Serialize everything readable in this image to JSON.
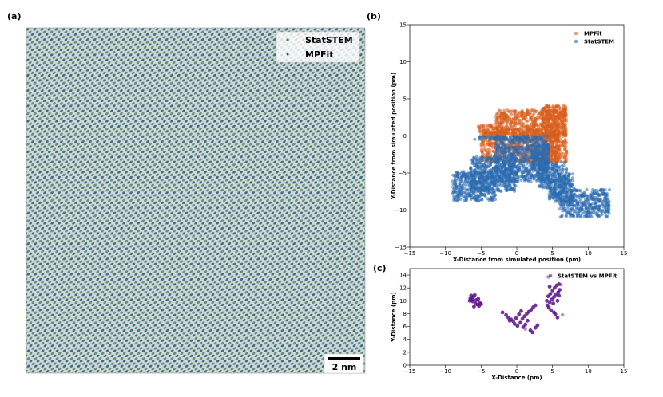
{
  "panels": {
    "a": "(a)",
    "b": "(b)",
    "c": "(c)"
  },
  "image_panel": {
    "legend": [
      "StatSTEM",
      "MPFit"
    ],
    "legend_colors": [
      "#2ca02c",
      "#1f3a8a"
    ],
    "scale_bar_label": "2 nm",
    "lattice_colors": [
      "#5a8a7a",
      "#3a6a8a",
      "#7aa08a"
    ]
  },
  "chart_data": [
    {
      "id": "b",
      "type": "scatter",
      "title": "",
      "xlabel": "X-Distance from simulated position (pm)",
      "ylabel": "Y-Distance from simulated position (pm)",
      "xlim": [
        -15,
        15
      ],
      "ylim": [
        -15,
        15
      ],
      "xticks": [
        -15,
        -10,
        -5,
        0,
        5,
        10,
        15
      ],
      "yticks": [
        -15,
        -10,
        -5,
        0,
        5,
        10,
        15
      ],
      "xtick_labels": [
        "−15",
        "−10",
        "−5",
        "0",
        "5",
        "10",
        "15"
      ],
      "ytick_labels": [
        "−15",
        "−10",
        "−5",
        "0",
        "5",
        "10",
        "15"
      ],
      "legend_position": "top-right",
      "series": [
        {
          "name": "MPFit",
          "color": "#d95f1c",
          "regions": [
            {
              "x": [
                -5,
                6
              ],
              "y": [
                -3.5,
                1
              ]
            },
            {
              "x": [
                -3,
                7
              ],
              "y": [
                0,
                3.5
              ]
            },
            {
              "x": [
                -5.5,
                -2
              ],
              "y": [
                0,
                1.5
              ]
            },
            {
              "x": [
                3.5,
                7
              ],
              "y": [
                -3.5,
                4.2
              ]
            }
          ]
        },
        {
          "name": "StatSTEM",
          "color": "#2b6cb0",
          "regions": [
            {
              "x": [
                -9,
                -3
              ],
              "y": [
                -8.8,
                -4.8
              ]
            },
            {
              "x": [
                -6.5,
                0
              ],
              "y": [
                -7.5,
                -2.8
              ]
            },
            {
              "x": [
                -3,
                4.5
              ],
              "y": [
                -6.2,
                0
              ]
            },
            {
              "x": [
                -6,
                1
              ],
              "y": [
                -0.5,
                -0.1
              ]
            },
            {
              "x": [
                3,
                7
              ],
              "y": [
                -7.2,
                -3.5
              ]
            },
            {
              "x": [
                4.5,
                8
              ],
              "y": [
                -9,
                -5
              ]
            },
            {
              "x": [
                6,
                13
              ],
              "y": [
                -11,
                -7.2
              ]
            },
            {
              "x": [
                2,
                4.5
              ],
              "y": [
                -4.5,
                -1
              ]
            }
          ]
        }
      ]
    },
    {
      "id": "c",
      "type": "scatter",
      "title": "",
      "xlabel": "X-Distance (pm)",
      "ylabel": "Y-Distance (pm)",
      "xlim": [
        -15,
        15
      ],
      "ylim": [
        0,
        15
      ],
      "xticks": [
        -15,
        -10,
        -5,
        0,
        5,
        10,
        15
      ],
      "yticks": [
        0,
        2,
        4,
        6,
        8,
        10,
        12,
        14
      ],
      "xtick_labels": [
        "−15",
        "−10",
        "−5",
        "0",
        "5",
        "10",
        "15"
      ],
      "ytick_labels": [
        "0",
        "2",
        "4",
        "6",
        "8",
        "10",
        "12",
        "14"
      ],
      "legend_position": "top-right",
      "series": [
        {
          "name": "StatSTEM vs MPFit",
          "color": "#5b0f8a",
          "points": [
            [
              -6.3,
              10.2
            ],
            [
              -6.1,
              10.6
            ],
            [
              -5.9,
              10.9
            ],
            [
              -6.5,
              10.4
            ],
            [
              -6.2,
              9.9
            ],
            [
              -5.8,
              9.6
            ],
            [
              -5.5,
              9.4
            ],
            [
              -5.2,
              9.7
            ],
            [
              -5.0,
              9.5
            ],
            [
              -6.0,
              9.1
            ],
            [
              -6.4,
              10.8
            ],
            [
              -5.7,
              10.1
            ],
            [
              -5.4,
              10.3
            ],
            [
              -6.6,
              10.0
            ],
            [
              -5.3,
              9.2
            ],
            [
              -2.0,
              8.2
            ],
            [
              -1.5,
              7.8
            ],
            [
              -1.2,
              7.4
            ],
            [
              -0.8,
              7.1
            ],
            [
              -0.5,
              6.8
            ],
            [
              -0.3,
              6.4
            ],
            [
              0.1,
              6.1
            ],
            [
              0.5,
              6.6
            ],
            [
              0.8,
              7.2
            ],
            [
              1.1,
              7.6
            ],
            [
              1.4,
              8.0
            ],
            [
              1.7,
              8.3
            ],
            [
              2.0,
              8.6
            ],
            [
              2.3,
              9.0
            ],
            [
              2.6,
              9.3
            ],
            [
              0.3,
              7.9
            ],
            [
              0.6,
              8.4
            ],
            [
              -1.0,
              6.9
            ],
            [
              1.9,
              5.4
            ],
            [
              2.2,
              5.1
            ],
            [
              2.6,
              5.8
            ],
            [
              2.9,
              6.2
            ],
            [
              1.5,
              6.9
            ],
            [
              -0.1,
              7.3
            ],
            [
              1.2,
              6.3
            ],
            [
              0.9,
              5.9
            ],
            [
              4.3,
              9.3
            ],
            [
              4.6,
              9.8
            ],
            [
              4.9,
              10.2
            ],
            [
              5.2,
              10.6
            ],
            [
              5.5,
              11.0
            ],
            [
              5.8,
              11.3
            ],
            [
              4.4,
              10.7
            ],
            [
              4.7,
              11.1
            ],
            [
              5.0,
              11.6
            ],
            [
              5.3,
              12.0
            ],
            [
              5.6,
              12.4
            ],
            [
              4.5,
              8.9
            ],
            [
              5.1,
              9.6
            ],
            [
              5.7,
              10.0
            ],
            [
              5.9,
              10.8
            ],
            [
              5.4,
              7.9
            ],
            [
              5.7,
              7.4
            ],
            [
              4.8,
              8.5
            ],
            [
              5.2,
              8.2
            ],
            [
              4.6,
              12.2
            ],
            [
              5.9,
              12.6
            ],
            [
              4.2,
              10.0
            ],
            [
              6.0,
              11.7
            ]
          ],
          "outliers": [
            [
              4.4,
              13.7
            ],
            [
              6.2,
              12.5
            ],
            [
              6.4,
              7.8
            ],
            [
              1.2,
              5.6
            ]
          ]
        }
      ]
    }
  ]
}
